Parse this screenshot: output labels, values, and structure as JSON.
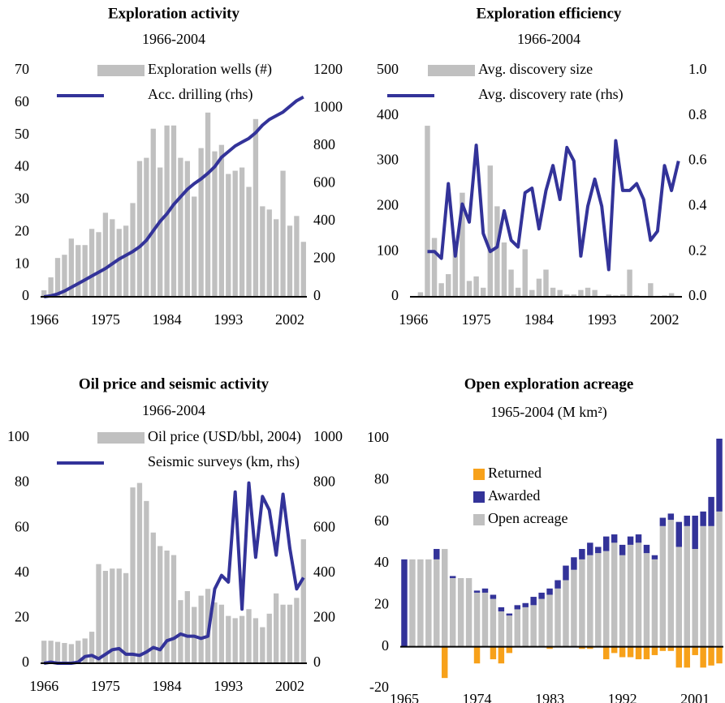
{
  "chart_data": [
    {
      "type": "combo",
      "title": "Exploration activity",
      "subtitle": "1966-2004",
      "legend": "top",
      "x": [
        1966,
        1967,
        1968,
        1969,
        1970,
        1971,
        1972,
        1973,
        1974,
        1975,
        1976,
        1977,
        1978,
        1979,
        1980,
        1981,
        1982,
        1983,
        1984,
        1985,
        1986,
        1987,
        1988,
        1989,
        1990,
        1991,
        1992,
        1993,
        1994,
        1995,
        1996,
        1997,
        1998,
        1999,
        2000,
        2001,
        2002,
        2003,
        2004
      ],
      "xlim": [
        1965.5,
        2004.5
      ],
      "xticks": [
        1966,
        1975,
        1984,
        1993,
        2002
      ],
      "ylim": [
        0,
        70
      ],
      "yticks": [
        0,
        10,
        20,
        30,
        40,
        50,
        60,
        70
      ],
      "y2lim": [
        0,
        1200
      ],
      "y2ticks": [
        0,
        200,
        400,
        600,
        800,
        1000,
        1200
      ],
      "series": [
        {
          "name": "Exploration wells (#)",
          "color": "#c0c0c0",
          "values": [
            2,
            6,
            12,
            13,
            18,
            16,
            16,
            21,
            20,
            26,
            24,
            21,
            22,
            29,
            42,
            43,
            52,
            40,
            53,
            53,
            43,
            42,
            31,
            46,
            57,
            45,
            47,
            38,
            39,
            40,
            34,
            55,
            28,
            27,
            24,
            39,
            22,
            25,
            17
          ]
        },
        {
          "name": "Acc. drilling (rhs)",
          "color": "#333399",
          "axis": "y2",
          "values": [
            0,
            5,
            15,
            30,
            50,
            70,
            90,
            110,
            130,
            150,
            175,
            200,
            220,
            240,
            265,
            300,
            350,
            400,
            440,
            490,
            530,
            570,
            600,
            625,
            655,
            690,
            740,
            770,
            800,
            820,
            840,
            870,
            910,
            940,
            960,
            980,
            1010,
            1040,
            1060
          ]
        }
      ]
    },
    {
      "type": "combo",
      "title": "Exploration efficiency",
      "subtitle": "1966-2004",
      "legend": "top",
      "x": [
        1966,
        1967,
        1968,
        1969,
        1970,
        1971,
        1972,
        1973,
        1974,
        1975,
        1976,
        1977,
        1978,
        1979,
        1980,
        1981,
        1982,
        1983,
        1984,
        1985,
        1986,
        1987,
        1988,
        1989,
        1990,
        1991,
        1992,
        1993,
        1994,
        1995,
        1996,
        1997,
        1998,
        1999,
        2000,
        2001,
        2002,
        2003,
        2004
      ],
      "xlim": [
        1965.5,
        2004.5
      ],
      "xticks": [
        1966,
        1975,
        1984,
        1993,
        2002
      ],
      "ylim": [
        0,
        500
      ],
      "yticks": [
        0,
        100,
        200,
        300,
        400,
        500
      ],
      "y2lim": [
        0,
        1
      ],
      "y2ticks": [
        {
          "value": 0,
          "label": "0.0"
        },
        0.2,
        0.4,
        0.6,
        0.8,
        {
          "value": 1,
          "label": "1.0"
        }
      ],
      "series": [
        {
          "name": "Avg. discovery size",
          "color": "#c0c0c0",
          "values": [
            0,
            10,
            378,
            130,
            30,
            50,
            120,
            230,
            35,
            45,
            20,
            290,
            200,
            120,
            60,
            20,
            105,
            15,
            40,
            60,
            20,
            15,
            5,
            5,
            15,
            20,
            15,
            0,
            5,
            3,
            5,
            60,
            3,
            2,
            30,
            2,
            3,
            8,
            0
          ]
        },
        {
          "name": "Avg. discovery rate (rhs)",
          "color": "#333399",
          "axis": "y2",
          "values": [
            null,
            null,
            0.2,
            0.2,
            0.17,
            0.5,
            0.18,
            0.41,
            0.33,
            0.67,
            0.28,
            0.2,
            0.22,
            0.38,
            0.25,
            0.22,
            0.46,
            0.48,
            0.3,
            0.47,
            0.58,
            0.43,
            0.66,
            0.6,
            0.18,
            0.4,
            0.52,
            0.4,
            0.12,
            0.69,
            0.47,
            0.47,
            0.5,
            0.43,
            0.25,
            0.29,
            0.58,
            0.47,
            0.6
          ]
        }
      ]
    },
    {
      "type": "combo",
      "title": "Oil price and seismic activity",
      "subtitle": "1966-2004",
      "legend": "top",
      "x": [
        1966,
        1967,
        1968,
        1969,
        1970,
        1971,
        1972,
        1973,
        1974,
        1975,
        1976,
        1977,
        1978,
        1979,
        1980,
        1981,
        1982,
        1983,
        1984,
        1985,
        1986,
        1987,
        1988,
        1989,
        1990,
        1991,
        1992,
        1993,
        1994,
        1995,
        1996,
        1997,
        1998,
        1999,
        2000,
        2001,
        2002,
        2003,
        2004
      ],
      "xlim": [
        1965.5,
        2004.5
      ],
      "xticks": [
        1966,
        1975,
        1984,
        1993,
        2002
      ],
      "ylim": [
        0,
        100
      ],
      "yticks": [
        0,
        20,
        40,
        60,
        80,
        100
      ],
      "y2lim": [
        0,
        1000
      ],
      "y2ticks": [
        0,
        200,
        400,
        600,
        800,
        1000
      ],
      "series": [
        {
          "name": "Oil price (USD/bbl, 2004)",
          "color": "#c0c0c0",
          "values": [
            10,
            10,
            9.5,
            9,
            8.5,
            10,
            11,
            14,
            44,
            41,
            42,
            42,
            40,
            78,
            80,
            72,
            58,
            52,
            50,
            48,
            28,
            32,
            25,
            30,
            33,
            27,
            26,
            21,
            20,
            21,
            24,
            20,
            16,
            22,
            31,
            26,
            26,
            29,
            55
          ]
        },
        {
          "name": "Seismic surveys (km, rhs)",
          "color": "#333399",
          "axis": "y2",
          "values": [
            0,
            5,
            0,
            0,
            0,
            5,
            30,
            35,
            20,
            40,
            60,
            65,
            40,
            40,
            35,
            50,
            70,
            60,
            100,
            110,
            130,
            120,
            120,
            110,
            120,
            330,
            390,
            360,
            760,
            240,
            800,
            470,
            740,
            680,
            480,
            750,
            510,
            330,
            380
          ]
        }
      ]
    },
    {
      "type": "stacked_bar",
      "title": "Open exploration acreage",
      "subtitle": "1965-2004 (M km²)",
      "legend": "upper left",
      "x": [
        1965,
        1966,
        1967,
        1968,
        1969,
        1970,
        1971,
        1972,
        1973,
        1974,
        1975,
        1976,
        1977,
        1978,
        1979,
        1980,
        1981,
        1982,
        1983,
        1984,
        1985,
        1986,
        1987,
        1988,
        1989,
        1990,
        1991,
        1992,
        1993,
        1994,
        1995,
        1996,
        1997,
        1998,
        1999,
        2000,
        2001,
        2002,
        2003,
        2004
      ],
      "xlim": [
        1964.5,
        2004.5
      ],
      "xticks": [
        1965,
        1974,
        1983,
        1992,
        2001
      ],
      "ylim": [
        -20,
        100
      ],
      "yticks": [
        -20,
        0,
        20,
        40,
        60,
        80,
        100
      ],
      "series": [
        {
          "name": "Returned",
          "color": "#f7a11a",
          "values": [
            0,
            0,
            0,
            0,
            0,
            -15,
            0,
            0,
            0,
            -8,
            0,
            -6,
            -8,
            -3,
            0,
            0,
            0,
            0,
            -1,
            0,
            0,
            0,
            -1,
            -1,
            0,
            -6,
            -3,
            -5,
            -5,
            -6,
            -6,
            -4,
            -2,
            -2,
            -10,
            -10,
            -4,
            -10,
            -9,
            -8
          ]
        },
        {
          "name": "Awarded",
          "color": "#333399",
          "values": [
            42,
            0,
            0,
            0,
            5,
            0,
            1,
            0,
            0,
            1,
            2,
            2,
            2,
            1,
            2,
            2,
            4,
            3,
            3,
            4,
            7,
            6,
            5,
            6,
            3,
            7,
            4,
            5,
            4,
            4,
            4,
            2,
            4,
            3,
            12,
            5,
            16,
            7,
            14,
            35
          ]
        },
        {
          "name": "Open acreage",
          "color": "#c0c0c0",
          "values": [
            0,
            42,
            42,
            42,
            42,
            47,
            33,
            33,
            33,
            26,
            26,
            23,
            17,
            15,
            18,
            19,
            20,
            23,
            25,
            28,
            32,
            37,
            42,
            44,
            45,
            46,
            50,
            44,
            49,
            50,
            45,
            42,
            58,
            61,
            48,
            58,
            47,
            58,
            58,
            65
          ]
        }
      ]
    }
  ]
}
